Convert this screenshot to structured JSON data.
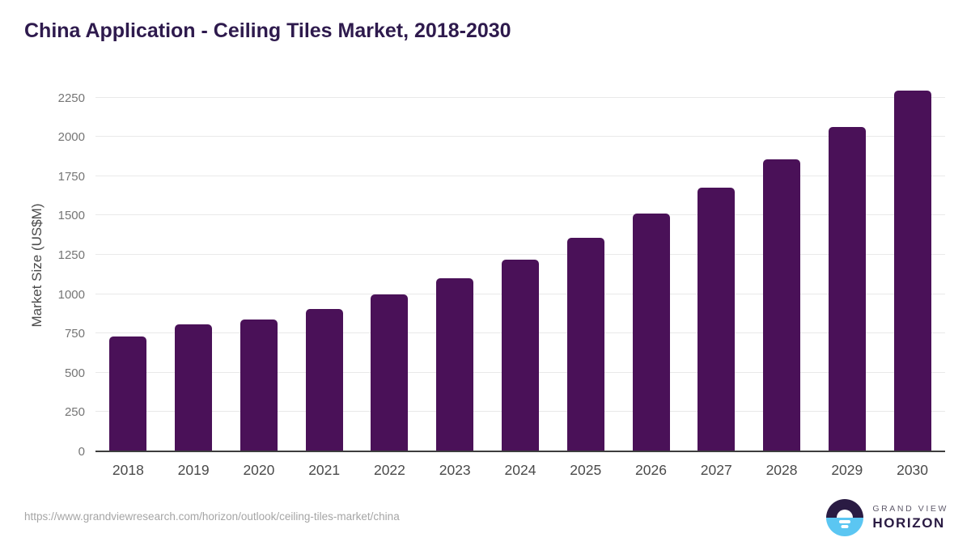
{
  "header": {
    "title": "China Application - Ceiling Tiles Market, 2018-2030"
  },
  "chart_data": {
    "type": "bar",
    "title": "China Application - Ceiling Tiles Market, 2018-2030",
    "categories": [
      "2018",
      "2019",
      "2020",
      "2021",
      "2022",
      "2023",
      "2024",
      "2025",
      "2026",
      "2027",
      "2028",
      "2029",
      "2030"
    ],
    "values": [
      730,
      810,
      840,
      905,
      1000,
      1100,
      1220,
      1360,
      1510,
      1675,
      1855,
      2065,
      2295
    ],
    "xlabel": "",
    "ylabel": "Market Size (US$M)",
    "yticks": [
      0,
      250,
      500,
      750,
      1000,
      1250,
      1500,
      1750,
      2000,
      2250
    ],
    "ylim": [
      0,
      2366
    ],
    "grid": "horizontal gridlines on, vertical off",
    "legend": "none",
    "bar_color": "#4a1158"
  },
  "footer": {
    "source_url": "https://www.grandviewresearch.com/horizon/outlook/ceiling-tiles-market/china",
    "logo": {
      "line1": "GRAND VIEW",
      "line2": "HORIZON"
    }
  },
  "colors": {
    "title": "#2e1a4d",
    "bar": "#4a1158",
    "grid": "#e9e9e9",
    "axis_line": "#3d3d3d",
    "ytick_text": "#757575",
    "xtick_text": "#4a4a4a",
    "url_text": "#a5a5a5",
    "logo_dark": "#2a1b43",
    "logo_blue": "#5bc6f2",
    "logo_gray": "#5f5a6b"
  }
}
